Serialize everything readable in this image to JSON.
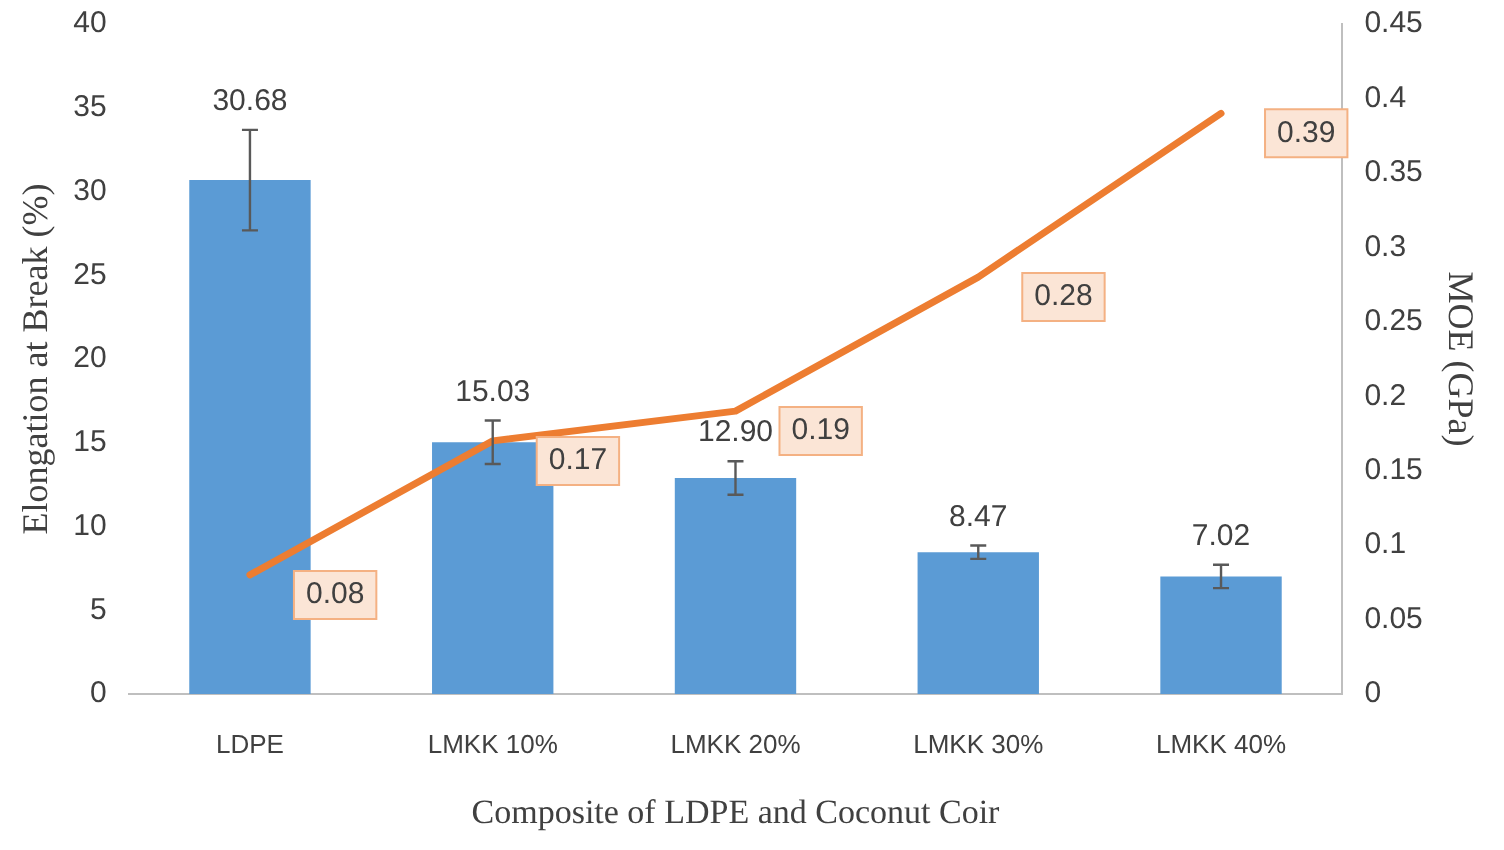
{
  "chart_data": {
    "type": "bar",
    "xlabel": "Composite of LDPE and Coconut Coir",
    "ylabel": "Elongation at Break (%)",
    "y2label": "MOE (GPa)",
    "categories": [
      "LDPE",
      "LMKK 10%",
      "LMKK 20%",
      "LMKK 30%",
      "LMKK 40%"
    ],
    "series": [
      {
        "color": "#5b9bd5",
        "values": [
          30.68,
          15.03,
          12.9,
          8.47,
          7.02
        ],
        "errors": [
          3.0,
          1.3,
          1.0,
          0.4,
          0.7
        ],
        "value_labels": [
          "30.68",
          "15.03",
          "12.90",
          "8.47",
          "7.02"
        ]
      },
      {
        "type": "line",
        "axis": "y2",
        "color": "#ed7d31",
        "values": [
          0.08,
          0.17,
          0.19,
          0.28,
          0.39
        ],
        "value_labels": [
          "0.08",
          "0.17",
          "0.19",
          "0.28",
          "0.39"
        ]
      }
    ],
    "ylim": [
      0,
      40
    ],
    "yticks": [
      0,
      5,
      10,
      15,
      20,
      25,
      30,
      35,
      40
    ],
    "y2lim": [
      0,
      0.45
    ],
    "y2ticks": [
      0,
      0.05,
      0.1,
      0.15,
      0.2,
      0.25,
      0.3,
      0.35,
      0.4,
      0.45
    ],
    "grid": false,
    "legend": false
  }
}
